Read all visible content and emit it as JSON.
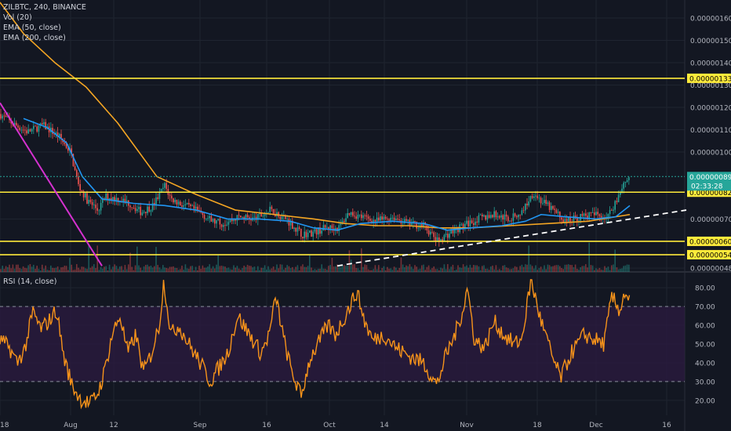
{
  "legend": {
    "symbol": "ZILBTC, 240, BINANCE",
    "volume": "Vol (20)",
    "ema50": "EMA (50, close)",
    "ema200": "EMA (200, close)",
    "rsi": "RSI (14, close)"
  },
  "colors": {
    "background": "#131722",
    "grid": "#1f2430",
    "candle_up": "#26a69a",
    "candle_down": "#ef5350",
    "ema50": "#2196f3",
    "ema200": "#f5a623",
    "horizontal_levels": "#ffeb3b",
    "downtrend_line": "#d531d0",
    "uptrend_line": "#ffffff",
    "rsi_line": "#f7931a",
    "rsi_band_fill": "#2a1a3e"
  },
  "chart_data": [
    {
      "type": "candlestick",
      "title": "ZILBTC, 240, BINANCE",
      "x_tick_labels": [
        "18",
        "Aug",
        "12",
        "Sep",
        "16",
        "Oct",
        "14",
        "Nov",
        "18",
        "Dec",
        "16"
      ],
      "y_tick_labels": [
        "0.00000160",
        "0.00000150",
        "0.00000140",
        "0.00000130",
        "0.00000120",
        "0.00000110",
        "0.00000100",
        "0.00000070",
        "0.00000048"
      ],
      "ylim": [
        4.7e-07,
        1.67e-06
      ],
      "horizontal_levels": [
        1.33e-06,
        8.2e-07,
        6e-07,
        5.4e-07
      ],
      "level_labels": [
        "0.00000133",
        "0.00000082",
        "0.00000060",
        "0.00000054"
      ],
      "last_price": 8.9e-07,
      "last_price_label": "0.00000089",
      "countdown": "02:33:28",
      "price_path": [
        [
          0,
          1.17e-06
        ],
        [
          15,
          1.13e-06
        ],
        [
          35,
          1.09e-06
        ],
        [
          55,
          1.12e-06
        ],
        [
          75,
          1.07e-06
        ],
        [
          90,
          1e-06
        ],
        [
          100,
          8.5e-07
        ],
        [
          112,
          7.8e-07
        ],
        [
          125,
          7.4e-07
        ],
        [
          135,
          8e-07
        ],
        [
          150,
          7.9e-07
        ],
        [
          165,
          7.7e-07
        ],
        [
          180,
          7.3e-07
        ],
        [
          195,
          7.6e-07
        ],
        [
          210,
          8.5e-07
        ],
        [
          218,
          7.9e-07
        ],
        [
          235,
          7.6e-07
        ],
        [
          255,
          7.3e-07
        ],
        [
          270,
          6.9e-07
        ],
        [
          285,
          6.8e-07
        ],
        [
          305,
          7.1e-07
        ],
        [
          325,
          7e-07
        ],
        [
          345,
          7.4e-07
        ],
        [
          365,
          7e-07
        ],
        [
          385,
          6.3e-07
        ],
        [
          400,
          6.4e-07
        ],
        [
          415,
          6.6e-07
        ],
        [
          432,
          6.6e-07
        ],
        [
          445,
          7.3e-07
        ],
        [
          460,
          7.1e-07
        ],
        [
          480,
          6.9e-07
        ],
        [
          500,
          7.1e-07
        ],
        [
          520,
          6.8e-07
        ],
        [
          540,
          6.7e-07
        ],
        [
          558,
          6e-07
        ],
        [
          570,
          6.3e-07
        ],
        [
          590,
          6.7e-07
        ],
        [
          610,
          7e-07
        ],
        [
          630,
          7.2e-07
        ],
        [
          650,
          7e-07
        ],
        [
          665,
          7.3e-07
        ],
        [
          680,
          8.2e-07
        ],
        [
          690,
          7.8e-07
        ],
        [
          705,
          7.4e-07
        ],
        [
          720,
          6.9e-07
        ],
        [
          740,
          7.1e-07
        ],
        [
          760,
          7.2e-07
        ],
        [
          775,
          7.1e-07
        ],
        [
          785,
          7.8e-07
        ],
        [
          795,
          8.6e-07
        ],
        [
          803,
          8.9e-07
        ]
      ],
      "ema50_path": [
        [
          30,
          1.15e-06
        ],
        [
          60,
          1.11e-06
        ],
        [
          85,
          1.04e-06
        ],
        [
          105,
          8.9e-07
        ],
        [
          130,
          7.9e-07
        ],
        [
          170,
          7.7e-07
        ],
        [
          210,
          7.6e-07
        ],
        [
          250,
          7.4e-07
        ],
        [
          290,
          7e-07
        ],
        [
          330,
          7e-07
        ],
        [
          370,
          6.9e-07
        ],
        [
          400,
          6.6e-07
        ],
        [
          430,
          6.5e-07
        ],
        [
          460,
          6.8e-07
        ],
        [
          500,
          6.9e-07
        ],
        [
          540,
          6.8e-07
        ],
        [
          570,
          6.5e-07
        ],
        [
          600,
          6.6e-07
        ],
        [
          640,
          6.7e-07
        ],
        [
          670,
          6.9e-07
        ],
        [
          690,
          7.2e-07
        ],
        [
          720,
          7.1e-07
        ],
        [
          760,
          7e-07
        ],
        [
          785,
          7.1e-07
        ],
        [
          803,
          7.6e-07
        ]
      ],
      "ema200_path": [
        [
          0,
          1.67e-06
        ],
        [
          30,
          1.53e-06
        ],
        [
          70,
          1.4e-06
        ],
        [
          110,
          1.29e-06
        ],
        [
          150,
          1.13e-06
        ],
        [
          200,
          8.9e-07
        ],
        [
          250,
          8.1e-07
        ],
        [
          300,
          7.4e-07
        ],
        [
          350,
          7.2e-07
        ],
        [
          400,
          7e-07
        ],
        [
          440,
          6.8e-07
        ],
        [
          480,
          6.7e-07
        ],
        [
          520,
          6.7e-07
        ],
        [
          560,
          6.6e-07
        ],
        [
          600,
          6.6e-07
        ],
        [
          650,
          6.7e-07
        ],
        [
          700,
          6.8e-07
        ],
        [
          750,
          6.9e-07
        ],
        [
          803,
          7.2e-07
        ]
      ],
      "downtrend_line": [
        [
          0,
          1.22e-06
        ],
        [
          130,
          4.9e-07
        ]
      ],
      "uptrend_line": [
        [
          430,
          4.9e-07
        ],
        [
          875,
          7.4e-07
        ]
      ]
    },
    {
      "type": "line",
      "title": "RSI (14, close)",
      "y_tick_labels": [
        "80.00",
        "70.00",
        "60.00",
        "50.00",
        "40.00",
        "30.00",
        "20.00"
      ],
      "ylim": [
        12,
        88
      ],
      "bands": [
        70,
        30
      ],
      "rsi_path": [
        [
          0,
          52
        ],
        [
          12,
          48
        ],
        [
          22,
          40
        ],
        [
          32,
          48
        ],
        [
          42,
          67
        ],
        [
          52,
          58
        ],
        [
          62,
          62
        ],
        [
          72,
          68
        ],
        [
          82,
          42
        ],
        [
          92,
          28
        ],
        [
          102,
          21
        ],
        [
          115,
          18
        ],
        [
          125,
          24
        ],
        [
          133,
          35
        ],
        [
          143,
          55
        ],
        [
          153,
          65
        ],
        [
          163,
          45
        ],
        [
          173,
          55
        ],
        [
          183,
          35
        ],
        [
          193,
          45
        ],
        [
          203,
          60
        ],
        [
          209,
          84
        ],
        [
          218,
          55
        ],
        [
          228,
          60
        ],
        [
          238,
          52
        ],
        [
          248,
          45
        ],
        [
          258,
          38
        ],
        [
          268,
          30
        ],
        [
          280,
          38
        ],
        [
          290,
          45
        ],
        [
          303,
          65
        ],
        [
          318,
          55
        ],
        [
          333,
          45
        ],
        [
          343,
          55
        ],
        [
          352,
          75
        ],
        [
          362,
          52
        ],
        [
          372,
          35
        ],
        [
          384,
          22
        ],
        [
          395,
          42
        ],
        [
          408,
          52
        ],
        [
          418,
          60
        ],
        [
          428,
          55
        ],
        [
          440,
          65
        ],
        [
          455,
          78
        ],
        [
          465,
          62
        ],
        [
          475,
          52
        ],
        [
          490,
          55
        ],
        [
          505,
          48
        ],
        [
          520,
          44
        ],
        [
          540,
          40
        ],
        [
          557,
          28
        ],
        [
          567,
          42
        ],
        [
          580,
          55
        ],
        [
          590,
          68
        ],
        [
          596,
          80
        ],
        [
          605,
          52
        ],
        [
          618,
          48
        ],
        [
          630,
          62
        ],
        [
          642,
          55
        ],
        [
          655,
          50
        ],
        [
          665,
          52
        ],
        [
          677,
          84
        ],
        [
          690,
          62
        ],
        [
          705,
          42
        ],
        [
          715,
          32
        ],
        [
          728,
          45
        ],
        [
          745,
          55
        ],
        [
          760,
          52
        ],
        [
          770,
          50
        ],
        [
          780,
          75
        ],
        [
          790,
          68
        ],
        [
          797,
          78
        ],
        [
          803,
          72
        ]
      ]
    }
  ]
}
